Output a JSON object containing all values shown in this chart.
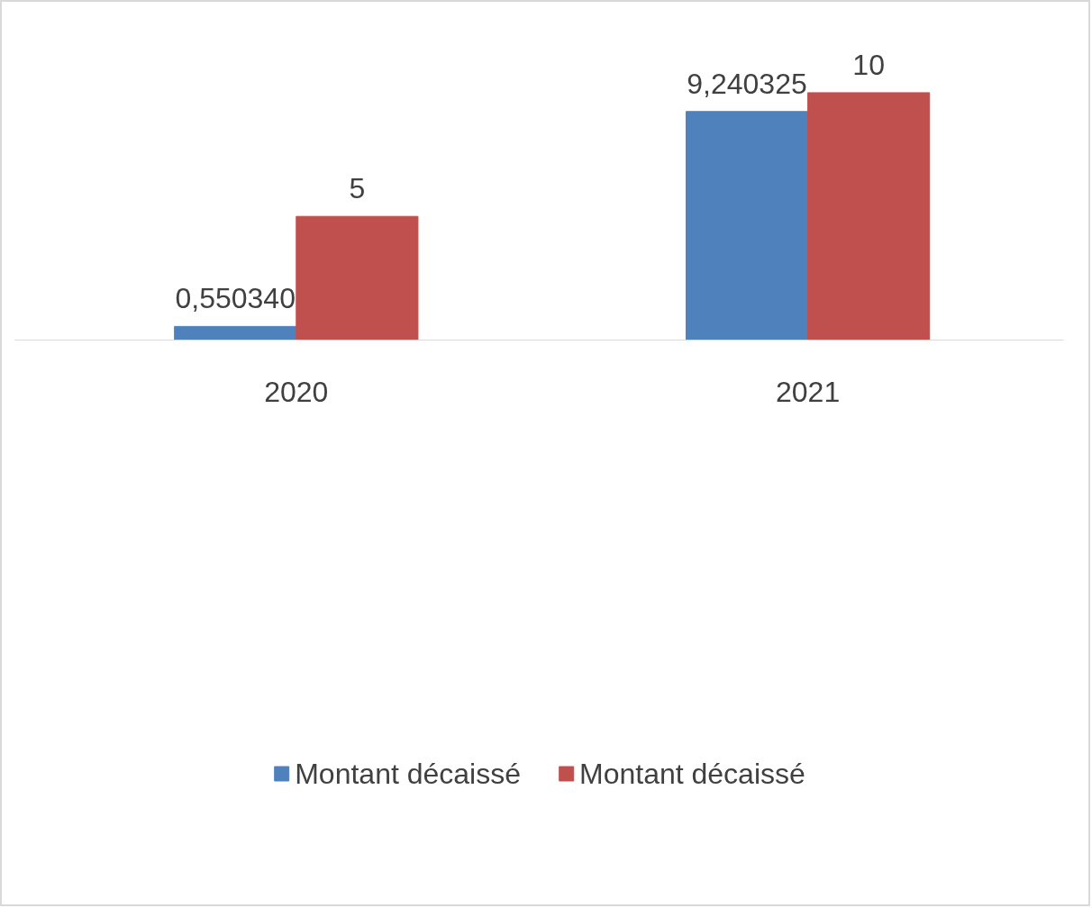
{
  "chart_data": {
    "type": "bar",
    "categories": [
      "2020",
      "2021"
    ],
    "series": [
      {
        "name": "Montant décaissé",
        "color": "#4f81bd",
        "values": [
          0.55034,
          9.240325
        ],
        "value_labels": [
          "0,550340",
          "9,240325"
        ]
      },
      {
        "name": "Montant décaissé",
        "color": "#c0504d",
        "values": [
          5,
          10
        ],
        "value_labels": [
          "5",
          "10"
        ]
      }
    ],
    "legend": "bottom",
    "grid": false
  }
}
